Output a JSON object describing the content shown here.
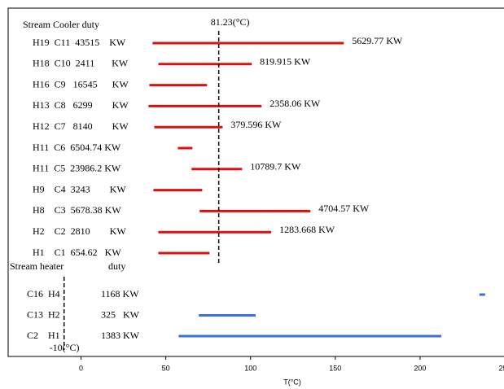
{
  "chart_data": {
    "type": "range",
    "xlabel": "T(°C)",
    "xlim": [
      -43,
      250
    ],
    "xticks": [
      0,
      50,
      100,
      150,
      200,
      250
    ],
    "reference_lines": [
      {
        "value": 81.23,
        "label": "81.23(°C)",
        "group": 0
      },
      {
        "value": -10,
        "label": "-10(°C)",
        "group": 1
      }
    ],
    "groups": [
      {
        "title": "Stream Cooler duty",
        "color": "#e01010",
        "items": [
          {
            "label": "H19  C11  43515    KW",
            "start": 42.2,
            "end": 155,
            "annotation": "5629.77 KW"
          },
          {
            "label": "H18  C10  2411       KW",
            "start": 45.6,
            "end": 100.7,
            "annotation": "819.915 KW"
          },
          {
            "label": "H16  C9   16545      KW",
            "start": 40.3,
            "end": 74.3
          },
          {
            "label": "H13  C8   6299        KW",
            "start": 39.8,
            "end": 106.5,
            "annotation": "2358.06 KW"
          },
          {
            "label": "H12  C7   8140        KW",
            "start": 43.2,
            "end": 83.5,
            "annotation": "379.596 KW"
          },
          {
            "label": "H11  C6  6504.74 KW",
            "start": 57.1,
            "end": 65.7
          },
          {
            "label": "H11  C5  23986.2 KW",
            "start": 65.2,
            "end": 95,
            "annotation": "10789.7 KW"
          },
          {
            "label": "H9    C4  3243        KW",
            "start": 42.7,
            "end": 71.5
          },
          {
            "label": "H8    C3  5678.38 KW",
            "start": 70,
            "end": 135.3,
            "annotation": "4704.57 KW"
          },
          {
            "label": "H2    C2  2810        KW",
            "start": 45.6,
            "end": 112.2,
            "annotation": "1283.668 KW"
          },
          {
            "label": "H1    C1  654.62   KW",
            "start": 45.6,
            "end": 75.8
          }
        ]
      },
      {
        "title": "Stream heater",
        "subtitle": "duty",
        "color": "#3a6fe0",
        "items": [
          {
            "label": "C16  H4",
            "duty": "1168 KW",
            "start": 235,
            "end": 238.4
          },
          {
            "label": "C13  H2",
            "duty": "325   KW",
            "start": 69.5,
            "end": 103
          },
          {
            "label": "C2    H1",
            "duty": "1383 KW",
            "start": 57.6,
            "end": 212.5
          }
        ]
      }
    ]
  }
}
